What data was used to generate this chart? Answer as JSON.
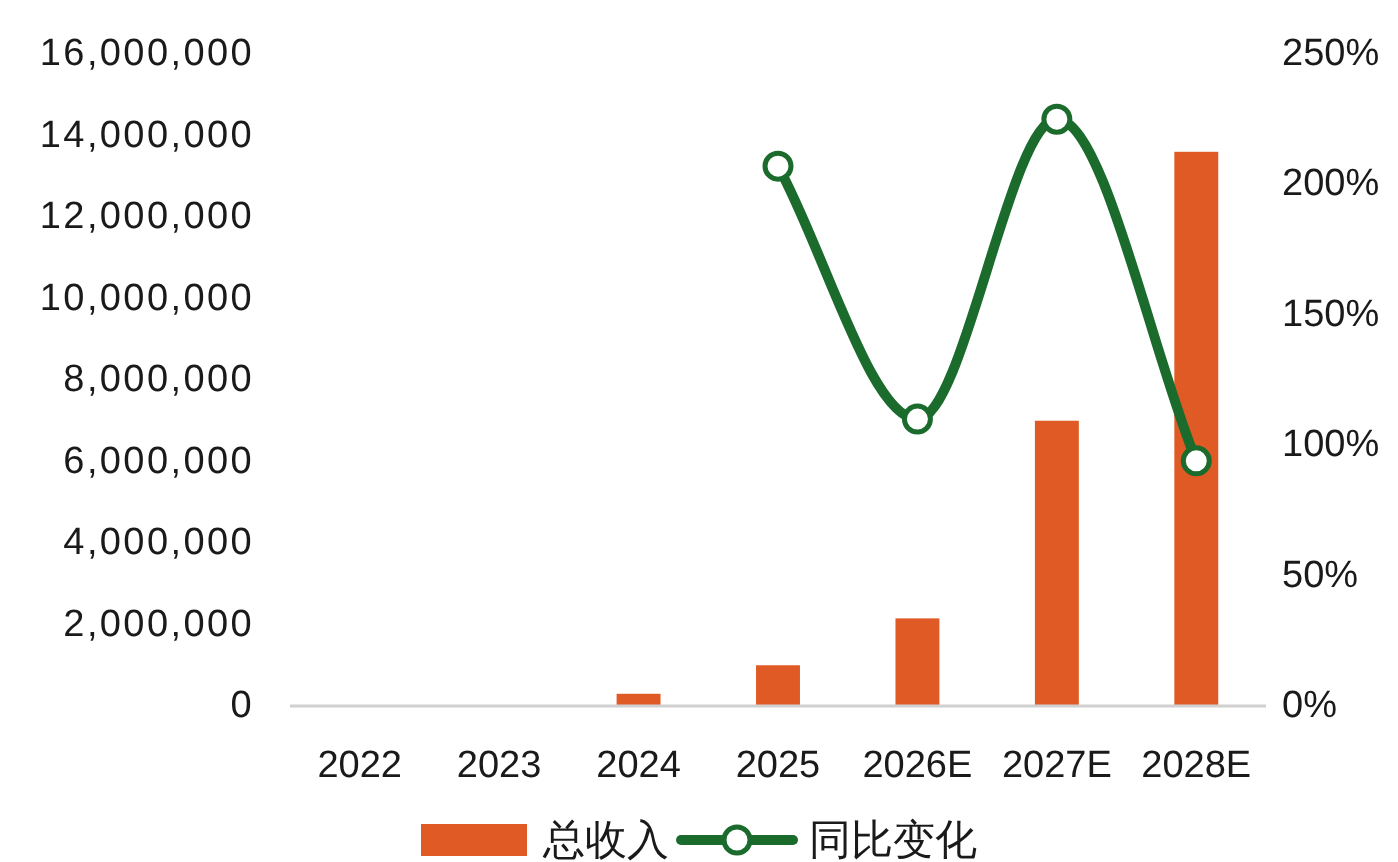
{
  "chart_data": {
    "type": "bar",
    "categories": [
      "2022",
      "2023",
      "2024",
      "2025",
      "2026E",
      "2027E",
      "2028E"
    ],
    "series": [
      {
        "name": "总收入",
        "color": "#e05a26",
        "values": [
          null,
          null,
          300000,
          1000000,
          2150000,
          7000000,
          13600000
        ]
      },
      {
        "name": "同比变化",
        "type": "line",
        "axis": "y2",
        "color": "#1b6b2c",
        "values": [
          null,
          null,
          null,
          207,
          110,
          225,
          94
        ]
      }
    ],
    "ylim": [
      0,
      16000000
    ],
    "yticks": [
      0,
      {
        "value": 2000000,
        "label": "2,000,000"
      },
      {
        "value": 4000000,
        "label": "4,000,000"
      },
      {
        "value": 6000000,
        "label": "6,000,000"
      },
      {
        "value": 8000000,
        "label": "8,000,000"
      },
      {
        "value": 10000000,
        "label": "10,000,000"
      },
      {
        "value": 12000000,
        "label": "12,000,000"
      },
      {
        "value": 14000000,
        "label": "14,000,000"
      },
      {
        "value": 16000000,
        "label": "16,000,000"
      }
    ],
    "y2lim": [
      0,
      250
    ],
    "y2ticks": [
      {
        "value": 0,
        "label": "0%"
      },
      {
        "value": 50,
        "label": "50%"
      },
      {
        "value": 100,
        "label": "100%"
      },
      {
        "value": 150,
        "label": "150%"
      },
      {
        "value": 200,
        "label": "200%"
      },
      {
        "value": 250,
        "label": "250%"
      }
    ],
    "marker": "circle",
    "legend": "bottom"
  }
}
